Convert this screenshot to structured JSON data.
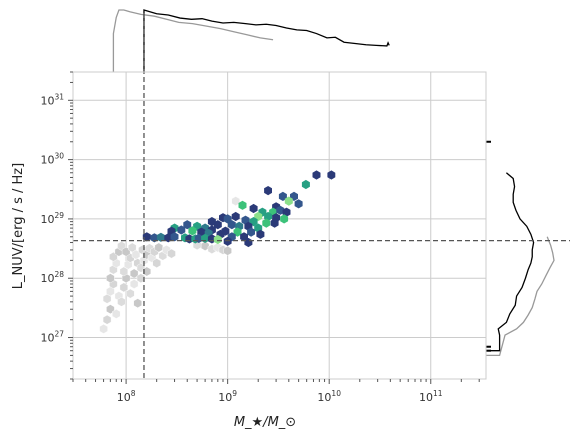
{
  "chart_data": {
    "type": "scatter",
    "subtype": "hexbin with marginal histograms",
    "title": "",
    "xlabel": "M_★/M_⊙",
    "ylabel": "L_NUV/[erg / s / Hz]",
    "xscale": "log",
    "yscale": "log",
    "xlim": [
      30000000,
      350000000000
    ],
    "ylim": [
      2e+26,
      3e+31
    ],
    "grid": true,
    "x_ticks": [
      {
        "base": "10",
        "exp": "8",
        "value": 100000000
      },
      {
        "base": "10",
        "exp": "9",
        "value": 1000000000
      },
      {
        "base": "10",
        "exp": "10",
        "value": 10000000000
      },
      {
        "base": "10",
        "exp": "11",
        "value": 100000000000
      }
    ],
    "y_ticks": [
      {
        "base": "10",
        "exp": "27",
        "value": 1e+27
      },
      {
        "base": "10",
        "exp": "28",
        "value": 1e+28
      },
      {
        "base": "10",
        "exp": "29",
        "value": 1e+29
      },
      {
        "base": "10",
        "exp": "30",
        "value": 1e+30
      },
      {
        "base": "10",
        "exp": "31",
        "value": 1e+31
      }
    ],
    "reference_lines": {
      "x": 150000000,
      "y": 4.3e+28
    },
    "colors": {
      "background_series": "#bdbdbd",
      "cmap": [
        "#2b3a78",
        "#34578d",
        "#2f7a8c",
        "#27a083",
        "#3cc27a",
        "#8be08a"
      ],
      "marginal_black": "#000000",
      "marginal_gray": "#999999",
      "reference": "#555555",
      "grid": "#cccccc"
    },
    "series": [
      {
        "points": [
          [
            60000000,
            1.4e+27
          ],
          [
            65000000,
            2e+27
          ],
          [
            70000000,
            3e+27
          ],
          [
            65000000,
            4.5e+27
          ],
          [
            70000000,
            6e+27
          ],
          [
            75000000,
            8e+27
          ],
          [
            70000000,
            1e+28
          ],
          [
            75000000,
            1.4e+28
          ],
          [
            80000000,
            1.8e+28
          ],
          [
            75000000,
            2.3e+28
          ],
          [
            85000000,
            2.8e+28
          ],
          [
            90000000,
            3.5e+28
          ],
          [
            85000000,
            5e+27
          ],
          [
            95000000,
            7e+27
          ],
          [
            100000000,
            1e+28
          ],
          [
            95000000,
            1.3e+28
          ],
          [
            105000000,
            1.7e+28
          ],
          [
            110000000,
            2.2e+28
          ],
          [
            100000000,
            2.8e+28
          ],
          [
            115000000,
            3.3e+28
          ],
          [
            125000000,
            2.5e+28
          ],
          [
            130000000,
            1.8e+28
          ],
          [
            120000000,
            1.2e+28
          ],
          [
            140000000,
            1.5e+28
          ],
          [
            150000000,
            2e+28
          ],
          [
            145000000,
            3e+28
          ],
          [
            160000000,
            2.5e+28
          ],
          [
            170000000,
            3.2e+28
          ],
          [
            180000000,
            2.2e+28
          ],
          [
            190000000,
            2.8e+28
          ],
          [
            210000000,
            3.3e+28
          ],
          [
            230000000,
            2.4e+28
          ],
          [
            250000000,
            3e+28
          ],
          [
            280000000,
            2.6e+28
          ],
          [
            130000000,
            3.8e+27
          ],
          [
            110000000,
            5.5e+27
          ],
          [
            120000000,
            8e+27
          ],
          [
            140000000,
            1e+28
          ],
          [
            160000000,
            1.3e+28
          ],
          [
            90000000,
            4e+27
          ],
          [
            80000000,
            2.5e+27
          ],
          [
            200000000,
            1.8e+28
          ],
          [
            600000000,
            3.5e+28
          ],
          [
            700000000,
            3.1e+28
          ],
          [
            800000000,
            3.3e+28
          ],
          [
            900000000,
            3e+28
          ],
          [
            1000000000,
            2.9e+28
          ],
          [
            500000000,
            3.6e+28
          ],
          [
            1200000000,
            2e+29
          ]
        ]
      },
      {
        "points": [
          [
            7500000000,
            5.5e+29,
            0.15
          ],
          [
            10500000000,
            5.5e+29,
            0.1
          ],
          [
            5900000000,
            3.8e+29,
            0.6
          ],
          [
            2500000000,
            3e+29,
            0.1
          ],
          [
            3500000000,
            2.4e+29,
            0.2
          ],
          [
            4500000000,
            2.4e+29,
            0.3
          ],
          [
            4000000000,
            2e+29,
            0.85
          ],
          [
            5000000000,
            1.8e+29,
            0.2
          ],
          [
            3000000000,
            1.6e+29,
            0.1
          ],
          [
            1400000000,
            1.7e+29,
            0.75
          ],
          [
            1800000000,
            1.5e+29,
            0.1
          ],
          [
            2200000000,
            1.3e+29,
            0.5
          ],
          [
            2800000000,
            1.3e+29,
            0.7
          ],
          [
            3300000000,
            1.4e+29,
            0.2
          ],
          [
            3800000000,
            1.3e+29,
            0.1
          ],
          [
            2000000000,
            1.1e+29,
            0.95
          ],
          [
            2500000000,
            1.1e+29,
            0.6
          ],
          [
            3000000000,
            1.05e+29,
            0.1
          ],
          [
            3600000000,
            1e+29,
            0.8
          ],
          [
            1200000000,
            1.1e+29,
            0.15
          ],
          [
            900000000,
            1.05e+29,
            0.05
          ],
          [
            1000000000,
            1e+29,
            0.2
          ],
          [
            1500000000,
            9.5e+28,
            0.3
          ],
          [
            1800000000,
            9e+28,
            0.55
          ],
          [
            2400000000,
            8.5e+28,
            0.7
          ],
          [
            2900000000,
            8.5e+28,
            0.1
          ],
          [
            700000000,
            9e+28,
            0.1
          ],
          [
            800000000,
            8e+28,
            0.05
          ],
          [
            1100000000,
            8e+28,
            0.25
          ],
          [
            1300000000,
            7.5e+28,
            0.4
          ],
          [
            1600000000,
            7.5e+28,
            0.15
          ],
          [
            2000000000,
            7e+28,
            0.55
          ],
          [
            400000000,
            8e+28,
            0.3
          ],
          [
            500000000,
            7.5e+28,
            0.6
          ],
          [
            600000000,
            7e+28,
            0.4
          ],
          [
            700000000,
            6.5e+28,
            0.1
          ],
          [
            950000000,
            6.2e+28,
            0.15
          ],
          [
            1250000000,
            6e+28,
            0.7
          ],
          [
            1700000000,
            6e+28,
            0.25
          ],
          [
            2100000000,
            5.5e+28,
            0.1
          ],
          [
            300000000,
            7e+28,
            0.5
          ],
          [
            350000000,
            6.5e+28,
            0.2
          ],
          [
            450000000,
            6.3e+28,
            0.8
          ],
          [
            550000000,
            6e+28,
            0.1
          ],
          [
            650000000,
            5.7e+28,
            0.35
          ],
          [
            850000000,
            5.5e+28,
            0.15
          ],
          [
            1100000000,
            5e+28,
            0.3
          ],
          [
            1450000000,
            5e+28,
            0.05
          ],
          [
            280000000,
            6.2e+28,
            0.12
          ],
          [
            160000000,
            5e+28,
            0.1
          ],
          [
            190000000,
            4.8e+28,
            0.2
          ],
          [
            220000000,
            4.9e+28,
            0.45
          ],
          [
            260000000,
            4.8e+28,
            0.1
          ],
          [
            300000000,
            5e+28,
            0.3
          ],
          [
            380000000,
            4.8e+28,
            0.5
          ],
          [
            420000000,
            4.6e+28,
            0.05
          ],
          [
            480000000,
            4.6e+28,
            0.55
          ],
          [
            520000000,
            4.7e+28,
            0.25
          ],
          [
            600000000,
            4.7e+28,
            0.65
          ],
          [
            700000000,
            4.6e+28,
            0.1
          ],
          [
            800000000,
            4.5e+28,
            0.9
          ],
          [
            1000000000,
            4.2e+28,
            0.15
          ],
          [
            1600000000,
            4e+28,
            0.05
          ]
        ]
      }
    ],
    "marginal_x": {
      "gray": {
        "x": [
          75000000,
          80000000,
          85000000,
          95000000,
          110000000,
          140000000,
          190000000,
          250000000,
          330000000,
          450000000,
          620000000,
          850000000,
          1150000000,
          1550000000,
          2100000000,
          2800000000
        ],
        "count": [
          0.62,
          0.88,
          1.0,
          1.0,
          0.97,
          0.93,
          0.9,
          0.85,
          0.8,
          0.78,
          0.74,
          0.7,
          0.65,
          0.6,
          0.55,
          0.52
        ]
      },
      "black": {
        "x": [
          150000000,
          200000000,
          260000000,
          340000000,
          440000000,
          560000000,
          700000000,
          900000000,
          1150000000,
          1500000000,
          1900000000,
          2400000000,
          3000000000,
          3800000000,
          4800000000,
          6000000000,
          7500000000,
          9500000000,
          11500000000,
          14000000000,
          18000000000,
          23000000000,
          29000000000,
          37000000000,
          38000000000,
          39000000000
        ],
        "count": [
          1.0,
          0.94,
          0.92,
          0.87,
          0.85,
          0.86,
          0.82,
          0.79,
          0.8,
          0.78,
          0.76,
          0.77,
          0.75,
          0.71,
          0.68,
          0.67,
          0.62,
          0.55,
          0.56,
          0.48,
          0.46,
          0.44,
          0.43,
          0.42,
          0.47,
          0.43
        ]
      }
    },
    "marginal_y": {
      "black": {
        "y": [
          6e+26,
          1.1e+27,
          1.4e+27,
          1.8e+27,
          2.5e+27,
          3.5e+27,
          5e+27,
          7e+27,
          1e+28,
          1.4e+28,
          1.8e+28,
          2.3e+28,
          3e+28,
          4e+28,
          5.5e+28,
          7.5e+28,
          1e+29,
          1.4e+29,
          1.9e+29,
          2.6e+29,
          3.5e+29,
          4.8e+29,
          6e+29
        ],
        "count": [
          0.2,
          0.2,
          0.18,
          0.3,
          0.35,
          0.43,
          0.45,
          0.53,
          0.58,
          0.62,
          0.66,
          0.68,
          0.68,
          0.7,
          0.66,
          0.6,
          0.5,
          0.44,
          0.4,
          0.4,
          0.42,
          0.4,
          0.3
        ]
      },
      "gray": {
        "y": [
          5e+26,
          1.1e+27,
          1.4e+27,
          1.8e+27,
          2.4e+27,
          3.2e+27,
          4.5e+27,
          6e+27,
          8e+27,
          1.1e+28,
          1.5e+28,
          2e+28,
          2.7e+28,
          3.6e+28,
          5e+28
        ],
        "count": [
          0.2,
          0.28,
          0.45,
          0.55,
          0.62,
          0.68,
          0.72,
          0.75,
          0.82,
          0.88,
          0.94,
          1.0,
          0.98,
          0.95,
          0.9
        ]
      },
      "dots": [
        2e+30,
        6e+26,
        7e+26
      ]
    }
  }
}
